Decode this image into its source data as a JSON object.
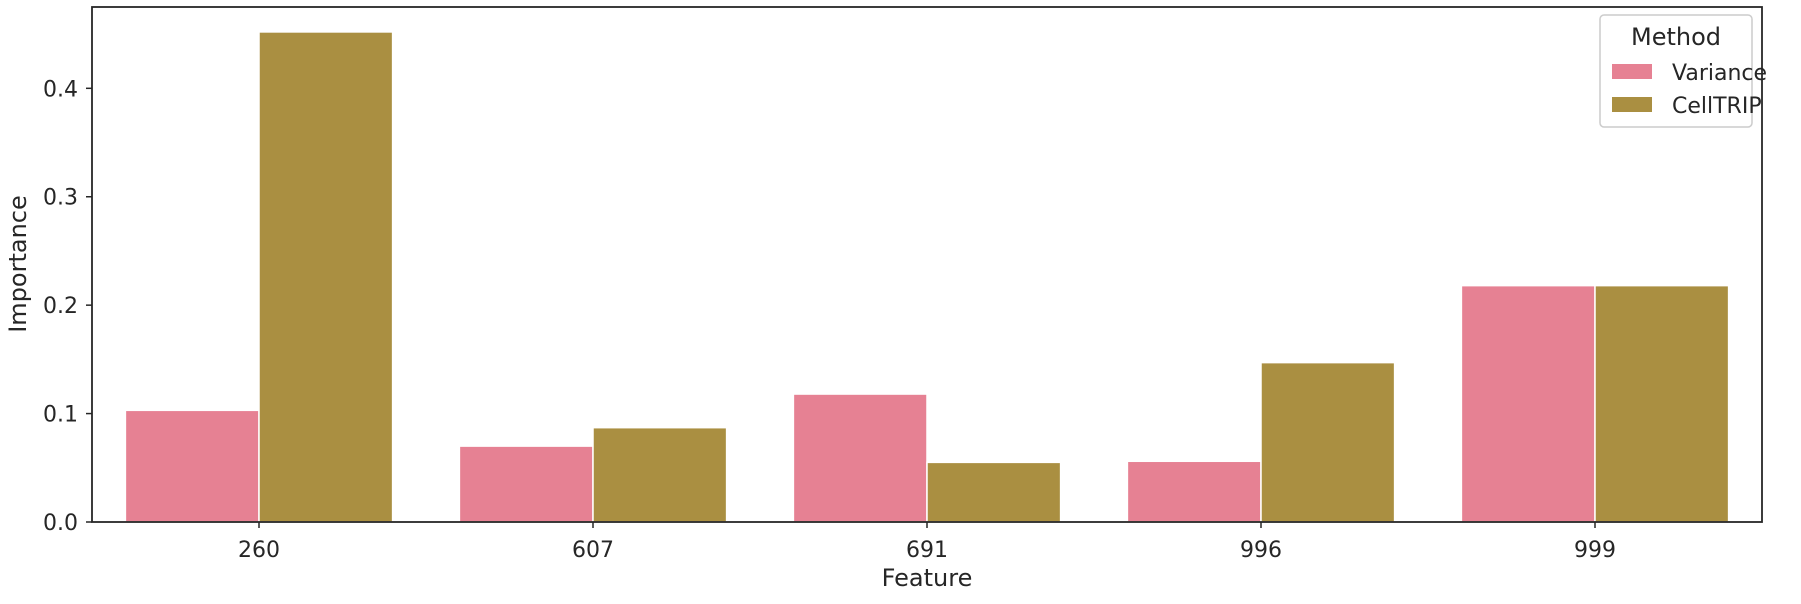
{
  "chart_data": {
    "type": "bar",
    "xlabel": "Feature",
    "ylabel": "Importance",
    "categories": [
      "260",
      "607",
      "691",
      "996",
      "999"
    ],
    "series": [
      {
        "name": "Variance",
        "values": [
          0.103,
          0.07,
          0.118,
          0.056,
          0.218
        ],
        "color": "#e68193"
      },
      {
        "name": "CellTRIP",
        "values": [
          0.452,
          0.087,
          0.055,
          0.147,
          0.218
        ],
        "color": "#aa8f41"
      }
    ],
    "ylim": [
      0,
      0.475
    ],
    "yticks": [
      0.0,
      0.1,
      0.2,
      0.3,
      0.4
    ],
    "ytick_labels": [
      "0.0",
      "0.1",
      "0.2",
      "0.3",
      "0.4"
    ],
    "grid": false,
    "legend": {
      "title": "Method",
      "position": "top-right"
    }
  }
}
